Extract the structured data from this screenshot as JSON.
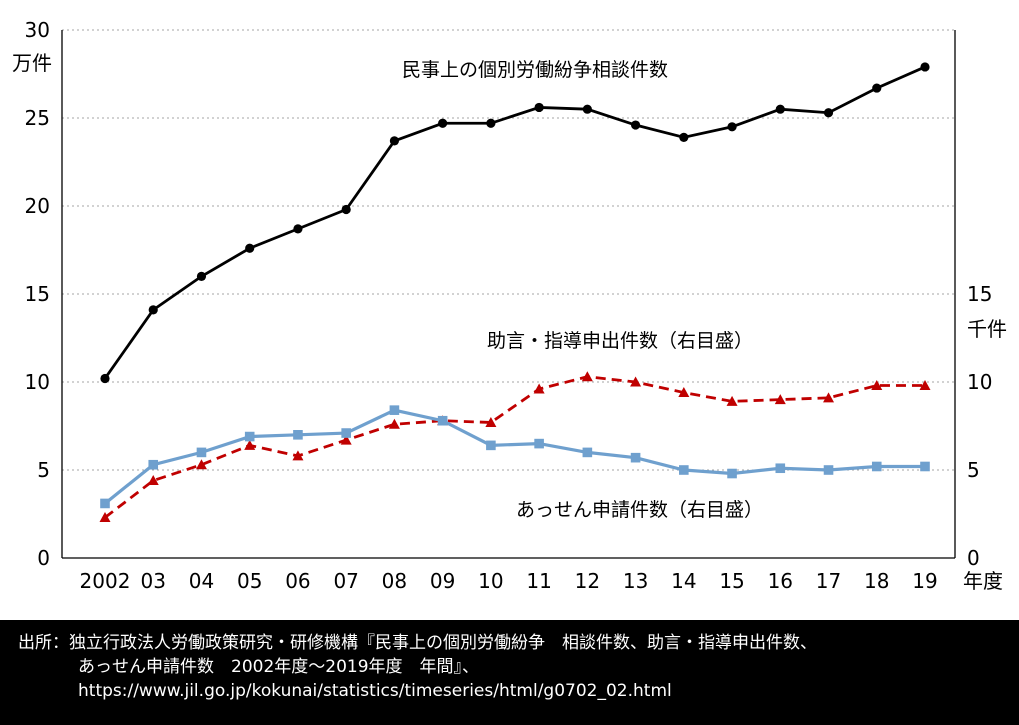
{
  "chart_data": {
    "type": "line",
    "title": "",
    "categories": [
      "2002",
      "03",
      "04",
      "05",
      "06",
      "07",
      "08",
      "09",
      "10",
      "11",
      "12",
      "13",
      "14",
      "15",
      "16",
      "17",
      "18",
      "19"
    ],
    "x_axis_label": "年度",
    "left_axis": {
      "unit": "万件",
      "ticks": [
        0,
        5,
        10,
        15,
        20,
        25,
        30
      ],
      "min": 0,
      "max": 30
    },
    "right_axis": {
      "unit": "千件",
      "ticks": [
        0,
        5,
        10,
        15
      ],
      "min": 0,
      "max": 15
    },
    "grid": "dotted-horizontal",
    "legend_position": "inline-annotations",
    "series": [
      {
        "name": "民事上の個別労働紛争相談件数",
        "key": "consultations",
        "axis": "left",
        "unit": "万件",
        "color": "#000000",
        "line_style": "solid",
        "marker": "circle",
        "values": [
          10.2,
          14.1,
          16.0,
          17.6,
          18.7,
          19.8,
          23.7,
          24.7,
          24.7,
          25.6,
          25.5,
          24.6,
          23.9,
          24.5,
          25.5,
          25.3,
          26.7,
          27.9
        ]
      },
      {
        "name": "助言・指導申出件数（右目盛）",
        "key": "advice",
        "axis": "right",
        "unit": "千件",
        "color": "#C00000",
        "line_style": "dashed",
        "marker": "triangle",
        "values": [
          2.3,
          4.4,
          5.3,
          6.4,
          5.8,
          6.7,
          7.6,
          7.8,
          7.7,
          9.6,
          10.3,
          10.0,
          9.4,
          8.9,
          9.0,
          9.1,
          9.8,
          9.8
        ]
      },
      {
        "name": "あっせん申請件数（右目盛）",
        "key": "mediation",
        "axis": "right",
        "unit": "千件",
        "color": "#6FA0CE",
        "line_style": "solid",
        "marker": "square",
        "values": [
          3.1,
          5.3,
          6.0,
          6.9,
          7.0,
          7.1,
          8.4,
          7.8,
          6.4,
          6.5,
          6.0,
          5.7,
          5.0,
          4.8,
          5.1,
          5.0,
          5.2,
          5.2
        ]
      }
    ],
    "annotations": {
      "consultations": "民事上の個別労働紛争相談件数",
      "advice": "助言・指導申出件数（右目盛）",
      "mediation": "あっせん申請件数（右目盛）"
    }
  },
  "source": {
    "label": "出所：",
    "line1": "独立行政法人労働政策研究・研修機構『民事上の個別労働紛争　相談件数、助言・指導申出件数、",
    "line2": "あっせん申請件数　2002年度～2019年度　年間』、",
    "url": "https://www.jil.go.jp/kokunai/statistics/timeseries/html/g0702_02.html"
  }
}
